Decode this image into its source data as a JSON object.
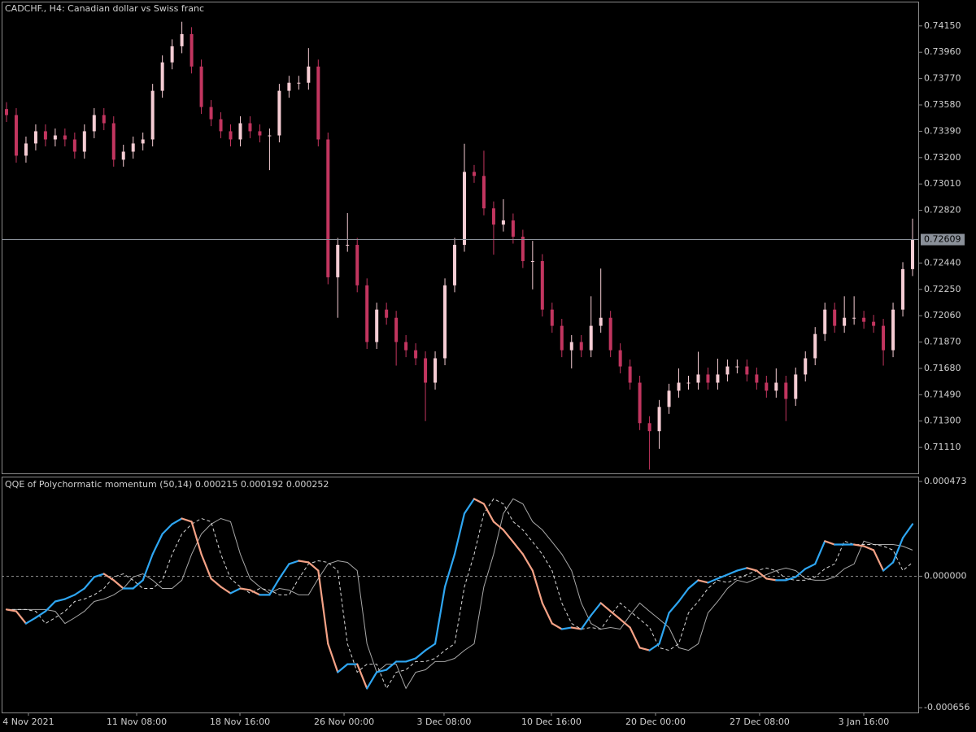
{
  "chart_data": [
    {
      "type": "candlestick",
      "title": "CADCHF., H4:  Canadian dollar vs Swiss franc",
      "up_color": "#f6cdd4",
      "down_color": "#c2355f",
      "xlim": [
        0,
        94
      ],
      "xticks": [
        {
          "value": 2.75,
          "label": "4 Nov 2021"
        },
        {
          "value": 13.86,
          "label": "11 Nov 08:00"
        },
        {
          "value": 24.46,
          "label": "18 Nov 16:00"
        },
        {
          "value": 35.15,
          "label": "26 Nov 00:00"
        },
        {
          "value": 45.41,
          "label": "3 Dec 08:00"
        },
        {
          "value": 56.43,
          "label": "10 Dec 16:00"
        },
        {
          "value": 67.12,
          "label": "20 Dec 00:00"
        },
        {
          "value": 77.8,
          "label": "27 Dec 08:00"
        },
        {
          "value": 88.49,
          "label": "3 Jan 16:00"
        }
      ],
      "ylim": [
        0.70923,
        0.74325
      ],
      "yticks": [
        {
          "value": 0.7415,
          "label": "0.74150"
        },
        {
          "value": 0.7396,
          "label": "0.73960"
        },
        {
          "value": 0.7377,
          "label": "0.73770"
        },
        {
          "value": 0.7358,
          "label": "0.73580"
        },
        {
          "value": 0.7339,
          "label": "0.73390"
        },
        {
          "value": 0.732,
          "label": "0.73200"
        },
        {
          "value": 0.7301,
          "label": "0.73010"
        },
        {
          "value": 0.7282,
          "label": "0.72820"
        },
        {
          "value": 0.7244,
          "label": "0.72440"
        },
        {
          "value": 0.7225,
          "label": "0.72250"
        },
        {
          "value": 0.7206,
          "label": "0.72060"
        },
        {
          "value": 0.7187,
          "label": "0.71870"
        },
        {
          "value": 0.7168,
          "label": "0.71680"
        },
        {
          "value": 0.7149,
          "label": "0.71490"
        },
        {
          "value": 0.713,
          "label": "0.71300"
        },
        {
          "value": 0.7111,
          "label": "0.71110"
        }
      ],
      "last_price": {
        "value": 0.72609,
        "label": "0.72609"
      },
      "open": [
        0.7355,
        0.73507,
        0.73214,
        0.73302,
        0.7339,
        0.73331,
        0.7336,
        0.73331,
        0.73243,
        0.7339,
        0.73507,
        0.73448,
        0.73185,
        0.73243,
        0.73302,
        0.73331,
        0.73682,
        0.73887,
        0.74003,
        0.74091,
        0.73857,
        0.73565,
        0.73477,
        0.7339,
        0.73331,
        0.73448,
        0.7339,
        0.7336,
        0.7336,
        0.73682,
        0.7374,
        0.7374,
        0.73857,
        0.73331,
        0.72337,
        0.72571,
        0.72571,
        0.72279,
        0.7187,
        0.72104,
        0.72045,
        0.7187,
        0.71811,
        0.71753,
        0.71577,
        0.71753,
        0.72279,
        0.72571,
        0.73097,
        0.73068,
        0.72834,
        0.72717,
        0.72747,
        0.7263,
        0.72454,
        0.72454,
        0.72104,
        0.71987,
        0.71811,
        0.7187,
        0.71811,
        0.71987,
        0.72045,
        0.71811,
        0.71694,
        0.71577,
        0.71285,
        0.71227,
        0.71402,
        0.71519,
        0.71577,
        0.71577,
        0.71636,
        0.71577,
        0.71636,
        0.71694,
        0.71694,
        0.71636,
        0.71577,
        0.71519,
        0.71577,
        0.7146,
        0.71636,
        0.71753,
        0.71928,
        0.72104,
        0.71987,
        0.72045,
        0.72045,
        0.72016,
        0.71987,
        0.71811,
        0.72104,
        0.72396
      ],
      "high": [
        0.736,
        0.73557,
        0.73352,
        0.7344,
        0.7344,
        0.7341,
        0.7341,
        0.73381,
        0.7344,
        0.73557,
        0.73557,
        0.73498,
        0.73293,
        0.73352,
        0.73381,
        0.73732,
        0.73937,
        0.74053,
        0.7418,
        0.74141,
        0.73907,
        0.73615,
        0.73527,
        0.7344,
        0.73498,
        0.73498,
        0.7344,
        0.7341,
        0.73732,
        0.7379,
        0.7379,
        0.7399,
        0.73907,
        0.73381,
        0.72621,
        0.728,
        0.72621,
        0.72329,
        0.72154,
        0.72154,
        0.72095,
        0.7192,
        0.71861,
        0.71803,
        0.71803,
        0.72329,
        0.72621,
        0.733,
        0.73147,
        0.7325,
        0.72884,
        0.729,
        0.72797,
        0.7268,
        0.726,
        0.72504,
        0.72154,
        0.72037,
        0.7192,
        0.7192,
        0.722,
        0.724,
        0.72095,
        0.71861,
        0.71744,
        0.71627,
        0.71335,
        0.71452,
        0.71569,
        0.7168,
        0.71627,
        0.718,
        0.71686,
        0.7175,
        0.71744,
        0.71744,
        0.71744,
        0.71686,
        0.71627,
        0.7168,
        0.71627,
        0.71686,
        0.71803,
        0.71978,
        0.72154,
        0.72154,
        0.722,
        0.722,
        0.72095,
        0.72066,
        0.72037,
        0.72154,
        0.72446,
        0.7276
      ],
      "low": [
        0.73457,
        0.73164,
        0.73164,
        0.73252,
        0.73281,
        0.73281,
        0.73281,
        0.73193,
        0.73193,
        0.7334,
        0.73398,
        0.73135,
        0.73135,
        0.73193,
        0.73252,
        0.73281,
        0.73632,
        0.73837,
        0.73953,
        0.73807,
        0.73515,
        0.73427,
        0.7334,
        0.73281,
        0.73281,
        0.7334,
        0.7331,
        0.7311,
        0.7331,
        0.73632,
        0.7369,
        0.7369,
        0.73281,
        0.72287,
        0.72045,
        0.72521,
        0.72229,
        0.7182,
        0.7182,
        0.71995,
        0.717,
        0.71761,
        0.71703,
        0.713,
        0.71527,
        0.71703,
        0.72229,
        0.72521,
        0.73018,
        0.72784,
        0.725,
        0.72667,
        0.7258,
        0.72404,
        0.7225,
        0.72054,
        0.71937,
        0.71761,
        0.7168,
        0.71761,
        0.71761,
        0.71937,
        0.71761,
        0.71644,
        0.71527,
        0.71235,
        0.7095,
        0.711,
        0.71352,
        0.71469,
        0.71527,
        0.71527,
        0.71527,
        0.71527,
        0.71586,
        0.71644,
        0.71586,
        0.71527,
        0.71469,
        0.71469,
        0.713,
        0.7141,
        0.71586,
        0.71703,
        0.71878,
        0.71937,
        0.71937,
        0.71995,
        0.71966,
        0.71937,
        0.717,
        0.71761,
        0.72054,
        0.72346
      ],
      "close": [
        0.73507,
        0.73214,
        0.73302,
        0.7339,
        0.73331,
        0.7336,
        0.73331,
        0.73243,
        0.7339,
        0.73507,
        0.73448,
        0.73185,
        0.73243,
        0.73302,
        0.73331,
        0.73682,
        0.73887,
        0.74003,
        0.74091,
        0.73857,
        0.73565,
        0.73477,
        0.7339,
        0.73331,
        0.73448,
        0.7339,
        0.7336,
        0.7336,
        0.73682,
        0.7374,
        0.7374,
        0.73857,
        0.73331,
        0.72337,
        0.72571,
        0.72571,
        0.72279,
        0.7187,
        0.72104,
        0.72045,
        0.7187,
        0.71811,
        0.71753,
        0.71577,
        0.71753,
        0.72279,
        0.72571,
        0.73097,
        0.73068,
        0.72834,
        0.72717,
        0.72747,
        0.7263,
        0.72454,
        0.72454,
        0.72104,
        0.71987,
        0.71811,
        0.7187,
        0.71811,
        0.71987,
        0.72045,
        0.71811,
        0.71694,
        0.71577,
        0.71285,
        0.71227,
        0.71402,
        0.71519,
        0.71577,
        0.71577,
        0.71636,
        0.71577,
        0.71636,
        0.71694,
        0.71694,
        0.71636,
        0.71577,
        0.71519,
        0.71577,
        0.7146,
        0.71636,
        0.71753,
        0.71928,
        0.72104,
        0.71987,
        0.72045,
        0.72045,
        0.72016,
        0.71987,
        0.71811,
        0.72104,
        0.72396,
        0.72609
      ]
    },
    {
      "type": "line",
      "title": "QQE of Polychormatic momentum (50,14)",
      "legend_values": [
        0.000215,
        0.000192,
        0.000252
      ],
      "xlim": [
        0,
        94
      ],
      "ylim": [
        -0.00068,
        0.000497
      ],
      "yticks": [
        0.000473,
        {
          "value": 0,
          "label": "0.000000"
        },
        -0.000656
      ],
      "levels": [
        0
      ],
      "series": [
        {
          "color": "#2ea6f2",
          "down_color": "#f5a286",
          "values": [
            -0.000166,
            -0.000175,
            -0.000236,
            -0.000207,
            -0.000175,
            -0.000126,
            -0.000114,
            -9.3e-05,
            -6.1e-05,
            -4e-06,
            1.2e-05,
            -2e-05,
            -6.1e-05,
            -6.1e-05,
            -2e-05,
            0.00011,
            0.000211,
            0.00026,
            0.000288,
            0.000272,
            0.00011,
            -1.2e-05,
            -5.3e-05,
            -8.5e-05,
            -6.1e-05,
            -6.9e-05,
            -9.3e-05,
            -9.3e-05,
            -1.2e-05,
            6.1e-05,
            7.7e-05,
            6.9e-05,
            2.8e-05,
            -0.000337,
            -0.000479,
            -0.000439,
            -0.000439,
            -0.00056,
            -0.000479,
            -0.000467,
            -0.000426,
            -0.000426,
            -0.00041,
            -0.00037,
            -0.000337,
            -5.3e-05,
            0.00011,
            0.000313,
            0.000386,
            0.000361,
            0.000272,
            0.000231,
            0.000171,
            0.00011,
            2.8e-05,
            -0.000134,
            -0.000236,
            -0.000264,
            -0.000256,
            -0.000264,
            -0.000195,
            -0.000134,
            -0.000175,
            -0.000215,
            -0.000256,
            -0.000357,
            -0.00037,
            -0.000337,
            -0.000183,
            -0.000126,
            -6.1e-05,
            -2e-05,
            -3.2e-05,
            -1.2e-05,
            8e-06,
            2.8e-05,
            4.1e-05,
            2.8e-05,
            -1.2e-05,
            -2e-05,
            -2e-05,
            -4e-06,
            3.7e-05,
            6.1e-05,
            0.000175,
            0.000158,
            0.000158,
            0.000158,
            0.00015,
            0.00013,
            2.8e-05,
            6.9e-05,
            0.000191,
            0.00026
          ]
        },
        {
          "color": "#d8d8d8",
          "dash": true,
          "values": [
            -0.000166,
            -0.000166,
            -0.000166,
            -0.000175,
            -0.000236,
            -0.000207,
            -0.000175,
            -0.000126,
            -0.000114,
            -9.3e-05,
            -6.1e-05,
            -4e-06,
            1.2e-05,
            -2e-05,
            -6.1e-05,
            -6.1e-05,
            -2e-05,
            0.00011,
            0.000211,
            0.00026,
            0.000288,
            0.000272,
            0.00011,
            -1.2e-05,
            -5.3e-05,
            -8.5e-05,
            -6.1e-05,
            -6.9e-05,
            -9.3e-05,
            -9.3e-05,
            -1.2e-05,
            6.1e-05,
            7.7e-05,
            6.9e-05,
            2.8e-05,
            -0.000337,
            -0.000479,
            -0.000439,
            -0.000439,
            -0.00056,
            -0.000479,
            -0.000467,
            -0.000426,
            -0.000426,
            -0.00041,
            -0.00037,
            -0.000337,
            -5.3e-05,
            0.00011,
            0.000313,
            0.000386,
            0.000361,
            0.000272,
            0.000231,
            0.000171,
            0.00011,
            2.8e-05,
            -0.000134,
            -0.000236,
            -0.000264,
            -0.000256,
            -0.000264,
            -0.000195,
            -0.000134,
            -0.000175,
            -0.000215,
            -0.000256,
            -0.000357,
            -0.00037,
            -0.000337,
            -0.000183,
            -0.000126,
            -6.1e-05,
            -2e-05,
            -3.2e-05,
            -1.2e-05,
            8e-06,
            2.8e-05,
            4.1e-05,
            2.8e-05,
            -1.2e-05,
            -2e-05,
            -2e-05,
            -4e-06,
            3.7e-05,
            6.1e-05,
            0.000175,
            0.000158,
            0.000158,
            0.000158,
            0.00015,
            0.00013,
            2.8e-05,
            6.9e-05
          ]
        },
        {
          "color": "#a8a8a8",
          "values": [
            -0.000166,
            -0.000166,
            -0.000166,
            -0.000166,
            -0.000166,
            -0.000175,
            -0.000236,
            -0.000207,
            -0.000175,
            -0.000126,
            -0.000114,
            -9.3e-05,
            -6.1e-05,
            -4e-06,
            1.2e-05,
            -2e-05,
            -6.1e-05,
            -6.1e-05,
            -2e-05,
            0.00011,
            0.000211,
            0.00026,
            0.000288,
            0.000272,
            0.00011,
            -1.2e-05,
            -5.3e-05,
            -8.5e-05,
            -6.1e-05,
            -6.9e-05,
            -9.3e-05,
            -9.3e-05,
            -1.2e-05,
            6.1e-05,
            7.7e-05,
            6.9e-05,
            2.8e-05,
            -0.000337,
            -0.000479,
            -0.000439,
            -0.000439,
            -0.00056,
            -0.000479,
            -0.000467,
            -0.000426,
            -0.000426,
            -0.00041,
            -0.00037,
            -0.000337,
            -5.3e-05,
            0.00011,
            0.000313,
            0.000386,
            0.000361,
            0.000272,
            0.000231,
            0.000171,
            0.00011,
            2.8e-05,
            -0.000134,
            -0.000236,
            -0.000264,
            -0.000256,
            -0.000264,
            -0.000195,
            -0.000134,
            -0.000175,
            -0.000215,
            -0.000256,
            -0.000357,
            -0.00037,
            -0.000337,
            -0.000183,
            -0.000126,
            -6.1e-05,
            -2e-05,
            -3.2e-05,
            -1.2e-05,
            8e-06,
            2.8e-05,
            4.1e-05,
            2.8e-05,
            -1.2e-05,
            -2e-05,
            -2e-05,
            -4e-06,
            3.7e-05,
            6.1e-05,
            0.000175,
            0.000158,
            0.000158,
            0.000158,
            0.00015,
            0.00013
          ]
        }
      ]
    }
  ]
}
